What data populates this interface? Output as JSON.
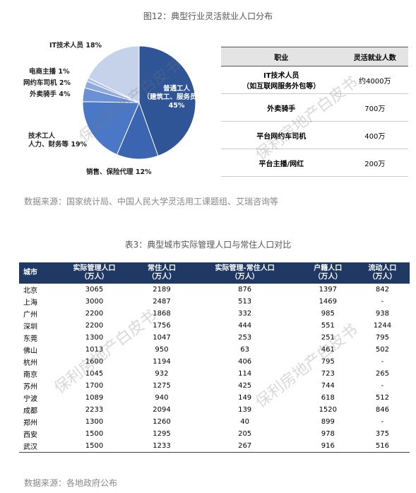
{
  "figure": {
    "title": "图12：典型行业灵活就业人口分布",
    "source": "数据来源：国家统计局、中国人民大学灵活用工课题组、艾瑞咨询等"
  },
  "chart_data": {
    "type": "pie",
    "categories": [
      "普通工人\n（建筑工、服务员等）",
      "销售、保险代理",
      "技术工人\n人力、财务等",
      "外卖骑手",
      "网约车司机",
      "电商主播",
      "IT技术人员"
    ],
    "values": [
      45,
      12,
      19,
      4,
      2,
      1,
      18
    ],
    "value_labels": [
      "45%",
      "12%",
      "19%",
      "4%",
      "2%",
      "1%",
      "18%"
    ],
    "colors": [
      "#2f5597",
      "#3b65b0",
      "#4a78c6",
      "#6b90d4",
      "#8eaade",
      "#aebfe5",
      "#c6d1ea"
    ]
  },
  "table1": {
    "header": [
      "职业",
      "灵活就业人数"
    ],
    "rows": [
      [
        "IT技术人员\n（如互联网服务外包等）",
        "约4000万"
      ],
      [
        "外卖骑手",
        "700万"
      ],
      [
        "平台网约车司机",
        "400万"
      ],
      [
        "平台主播/网红",
        "200万"
      ]
    ]
  },
  "table2": {
    "title": "表3：典型城市实际管理人口与常住人口对比",
    "header": [
      "城市",
      "实际管理人口\n（万人）",
      "常住人口\n（万人）",
      "实际管理-常住人口\n（万人）",
      "户籍人口\n（万人）",
      "流动人口\n（万人）"
    ],
    "rows": [
      [
        "北京",
        "3065",
        "2189",
        "876",
        "1397",
        "842"
      ],
      [
        "上海",
        "3000",
        "2487",
        "513",
        "1469",
        "-"
      ],
      [
        "广州",
        "2200",
        "1868",
        "332",
        "985",
        "938"
      ],
      [
        "深圳",
        "2200",
        "1756",
        "444",
        "551",
        "1244"
      ],
      [
        "东莞",
        "1300",
        "1047",
        "253",
        "251",
        "795"
      ],
      [
        "佛山",
        "1013",
        "950",
        "63",
        "461",
        "502"
      ],
      [
        "杭州",
        "1600",
        "1194",
        "406",
        "795",
        "-"
      ],
      [
        "南京",
        "1045",
        "932",
        "114",
        "723",
        "265"
      ],
      [
        "苏州",
        "1700",
        "1275",
        "425",
        "744",
        "-"
      ],
      [
        "宁波",
        "1089",
        "940",
        "149",
        "618",
        "512"
      ],
      [
        "成都",
        "2233",
        "2094",
        "139",
        "1520",
        "846"
      ],
      [
        "郑州",
        "1300",
        "1260",
        "40",
        "899",
        "-"
      ],
      [
        "西安",
        "1500",
        "1295",
        "205",
        "978",
        "375"
      ],
      [
        "武汉",
        "1500",
        "1233",
        "267",
        "916",
        "516"
      ]
    ],
    "source": "数据来源：各地政府公布"
  },
  "watermark": "保利房地产白皮书"
}
